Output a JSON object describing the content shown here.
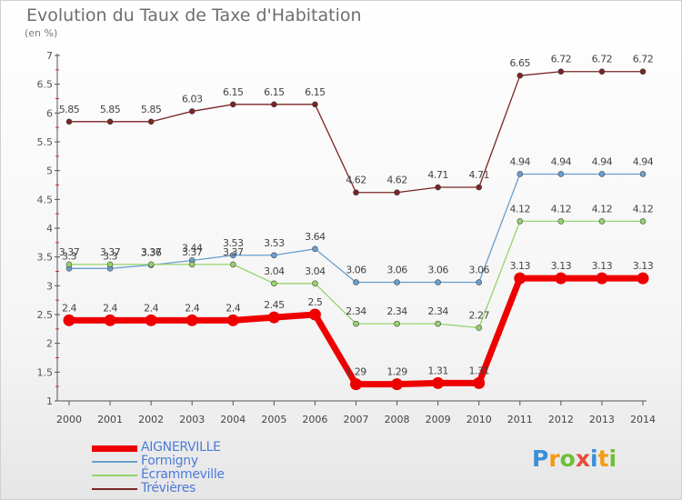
{
  "title": "Evolution du Taux de Taxe d'Habitation",
  "subtitle": "(en %)",
  "logo_letters": [
    "P",
    "r",
    "o",
    "x",
    "i",
    "t",
    "i"
  ],
  "logo_colors": [
    "#3a8fd9",
    "#f39c12",
    "#6cbf3a",
    "#e74c3c",
    "#3a8fd9",
    "#f39c12",
    "#6cbf3a"
  ],
  "chart_data": {
    "type": "line",
    "title": "Evolution du Taux de Taxe d'Habitation",
    "subtitle": "(en %)",
    "x": [
      "2000",
      "2001",
      "2002",
      "2003",
      "2004",
      "2005",
      "2006",
      "2007",
      "2008",
      "2009",
      "2010",
      "2011",
      "2012",
      "2013",
      "2014"
    ],
    "ylim": [
      1,
      7
    ],
    "yticks": [
      "1",
      "1.5",
      "2",
      "2.5",
      "3",
      "3.5",
      "4",
      "4.5",
      "5",
      "5.5",
      "6",
      "6.5",
      "7"
    ],
    "grid": false,
    "legend_position": "bottom-left",
    "series": [
      {
        "name": "AIGNERVILLE",
        "color": "#ee0000",
        "values": [
          2.4,
          2.4,
          2.4,
          2.4,
          2.4,
          2.45,
          2.5,
          1.29,
          1.29,
          1.31,
          1.31,
          3.13,
          3.13,
          3.13,
          3.13
        ],
        "labels": [
          "2.4",
          "2.4",
          "2.4",
          "2.4",
          "2.4",
          "2.45",
          "2.5",
          "1.29",
          "1.29",
          "1.31",
          "1.31",
          "3.13",
          "3.13",
          "3.13",
          "3.13"
        ]
      },
      {
        "name": "Formigny",
        "color": "#6a9fd0",
        "values": [
          3.3,
          3.3,
          3.36,
          3.44,
          3.53,
          3.53,
          3.64,
          3.06,
          3.06,
          3.06,
          3.06,
          4.94,
          4.94,
          4.94,
          4.94
        ],
        "labels": [
          "3.3",
          "3.3",
          "3.36",
          "3.44",
          "3.53",
          "3.53",
          "3.64",
          "3.06",
          "3.06",
          "3.06",
          "3.06",
          "4.94",
          "4.94",
          "4.94",
          "4.94"
        ]
      },
      {
        "name": "Écrammeville",
        "color": "#96d36a",
        "values": [
          3.37,
          3.37,
          3.37,
          3.37,
          3.37,
          3.04,
          3.04,
          2.34,
          2.34,
          2.34,
          2.27,
          4.12,
          4.12,
          4.12,
          4.12
        ],
        "labels": [
          "3.37",
          "3.37",
          "3.37",
          "3.37",
          "3.37",
          "3.04",
          "3.04",
          "2.34",
          "2.34",
          "2.34",
          "2.27",
          "4.12",
          "4.12",
          "4.12",
          "4.12"
        ]
      },
      {
        "name": "Trévières",
        "color": "#7a2424",
        "values": [
          5.85,
          5.85,
          5.85,
          6.03,
          6.15,
          6.15,
          6.15,
          4.62,
          4.62,
          4.71,
          4.71,
          6.65,
          6.72,
          6.72,
          6.72
        ],
        "labels": [
          "5.85",
          "5.85",
          "5.85",
          "6.03",
          "6.15",
          "6.15",
          "6.15",
          "4.62",
          "4.62",
          "4.71",
          "4.71",
          "6.65",
          "6.72",
          "6.72",
          "6.72"
        ]
      }
    ]
  }
}
